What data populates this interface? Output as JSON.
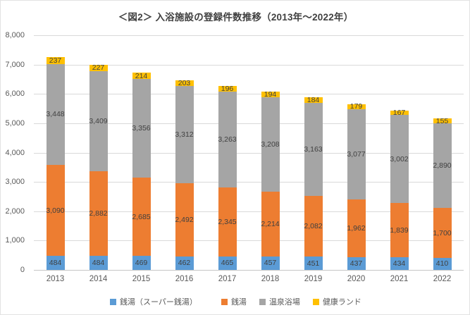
{
  "chart": {
    "title": "＜図2＞ 入浴施設の登録件数推移（2013年～2022年）"
  },
  "chart_data": {
    "type": "bar",
    "stacked": true,
    "title": "＜図2＞ 入浴施設の登録件数推移（2013年～2022年）",
    "categories": [
      "2013",
      "2014",
      "2015",
      "2016",
      "2017",
      "2018",
      "2019",
      "2020",
      "2021",
      "2022"
    ],
    "series": [
      {
        "name": "銭湯（スーパー銭湯）",
        "color": "#5B9BD5",
        "values": [
          484,
          484,
          469,
          462,
          465,
          457,
          451,
          437,
          434,
          410
        ]
      },
      {
        "name": "銭湯",
        "color": "#ED7D31",
        "values": [
          3090,
          2882,
          2685,
          2492,
          2345,
          2214,
          2082,
          1962,
          1839,
          1700
        ]
      },
      {
        "name": "温泉浴場",
        "color": "#A5A5A5",
        "values": [
          3448,
          3409,
          3356,
          3312,
          3263,
          3208,
          3163,
          3077,
          3002,
          2890
        ]
      },
      {
        "name": "健康ランド",
        "color": "#FFC000",
        "values": [
          237,
          227,
          214,
          203,
          196,
          194,
          184,
          179,
          167,
          155
        ]
      }
    ],
    "ylim": [
      0,
      8000
    ],
    "ytick_step": 1000,
    "grid": true,
    "legend_position": "bottom",
    "data_labels": true,
    "colors": {
      "grid": "#D9D9D9",
      "axis_text": "#595959",
      "data_label_text": "#404040",
      "title_text": "#404040"
    }
  }
}
